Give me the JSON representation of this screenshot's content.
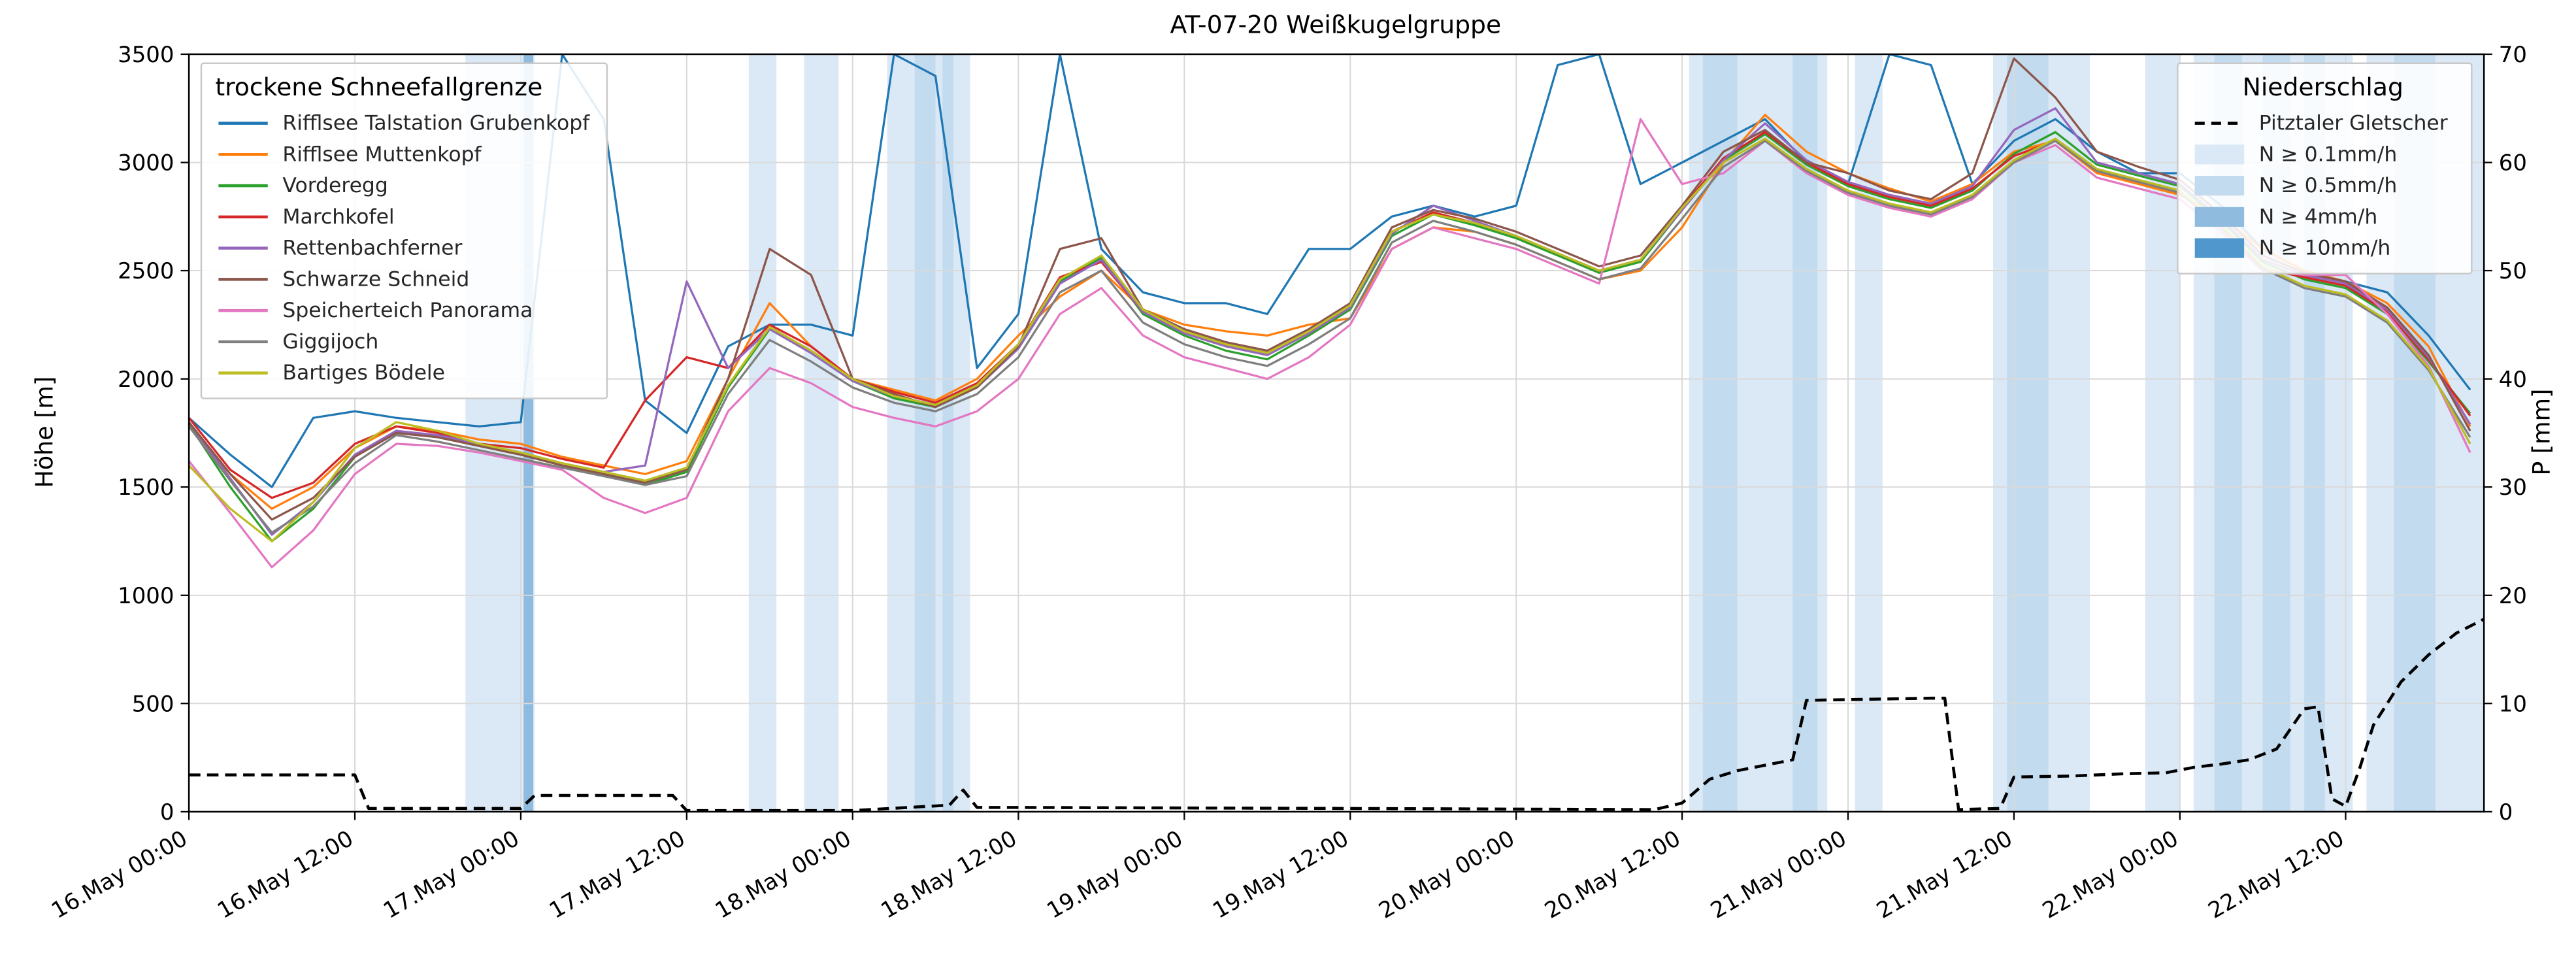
{
  "chart_data": {
    "type": "line",
    "title": "AT-07-20 Weißkugelgruppe",
    "ylabel_left": "Höhe [m]",
    "ylabel_right": "P [mm]",
    "legend_left_title": "trockene Schneefallgrenze",
    "legend_right_title": "Niederschlag",
    "x_domain": [
      0,
      166
    ],
    "x_hours": [
      0,
      3,
      6,
      9,
      12,
      15,
      18,
      21,
      24,
      27,
      30,
      33,
      36,
      39,
      42,
      45,
      48,
      51,
      54,
      57,
      60,
      63,
      66,
      69,
      72,
      75,
      78,
      81,
      84,
      87,
      90,
      93,
      96,
      99,
      102,
      105,
      108,
      111,
      114,
      117,
      120,
      123,
      126,
      129,
      132,
      135,
      138,
      141,
      144,
      147,
      150,
      153,
      156,
      159,
      162,
      165
    ],
    "x_tick_hours": [
      0,
      12,
      24,
      36,
      48,
      60,
      72,
      84,
      96,
      108,
      120,
      132,
      144,
      156
    ],
    "x_tick_labels": [
      "16.May 00:00",
      "16.May 12:00",
      "17.May 00:00",
      "17.May 12:00",
      "18.May 00:00",
      "18.May 12:00",
      "19.May 00:00",
      "19.May 12:00",
      "20.May 00:00",
      "20.May 12:00",
      "21.May 00:00",
      "21.May 12:00",
      "22.May 00:00",
      "22.May 12:00"
    ],
    "y_left": {
      "min": 0,
      "max": 3500,
      "ticks": [
        0,
        500,
        1000,
        1500,
        2000,
        2500,
        3000,
        3500
      ]
    },
    "y_right": {
      "min": 0,
      "max": 70,
      "ticks": [
        0,
        10,
        20,
        30,
        40,
        50,
        60,
        70
      ]
    },
    "grid_color": "#d9d9d9",
    "series": [
      {
        "name": "Rifflsee Talstation Grubenkopf",
        "color": "#1f77b4",
        "values": [
          1820,
          1650,
          1500,
          1820,
          1850,
          1820,
          1800,
          1780,
          1800,
          3500,
          3200,
          1900,
          1750,
          2150,
          2250,
          2250,
          2200,
          3500,
          3400,
          2050,
          2300,
          3500,
          2600,
          2400,
          2350,
          2350,
          2300,
          2600,
          2600,
          2750,
          2800,
          2750,
          2800,
          3450,
          3500,
          2900,
          3000,
          3100,
          3200,
          3000,
          2900,
          3500,
          3450,
          2900,
          3100,
          3200,
          3050,
          2950,
          2950,
          2800,
          2600,
          2500,
          2450,
          2400,
          2200,
          1950
        ]
      },
      {
        "name": "Rifflsee Muttenkopf",
        "color": "#ff7f0e",
        "values": [
          1780,
          1560,
          1400,
          1500,
          1680,
          1780,
          1760,
          1720,
          1700,
          1640,
          1600,
          1560,
          1620,
          2000,
          2350,
          2150,
          2000,
          1950,
          1900,
          2000,
          2200,
          2380,
          2500,
          2320,
          2250,
          2220,
          2200,
          2250,
          2280,
          2600,
          2700,
          2680,
          2620,
          2540,
          2460,
          2500,
          2700,
          3000,
          3220,
          3050,
          2950,
          2880,
          2820,
          2900,
          3050,
          3100,
          2950,
          2900,
          2850,
          2750,
          2600,
          2500,
          2450,
          2350,
          2150,
          1780
        ]
      },
      {
        "name": "Vorderegg",
        "color": "#2ca02c",
        "values": [
          1790,
          1500,
          1250,
          1400,
          1640,
          1760,
          1730,
          1690,
          1650,
          1600,
          1560,
          1510,
          1570,
          1960,
          2230,
          2120,
          1990,
          1910,
          1870,
          1960,
          2150,
          2450,
          2560,
          2300,
          2200,
          2130,
          2090,
          2200,
          2320,
          2660,
          2760,
          2710,
          2650,
          2570,
          2490,
          2540,
          2780,
          3010,
          3130,
          2990,
          2890,
          2830,
          2790,
          2870,
          3040,
          3140,
          2990,
          2940,
          2890,
          2730,
          2540,
          2460,
          2420,
          2300,
          2080,
          1840
        ]
      },
      {
        "name": "Marchkofel",
        "color": "#d62728",
        "values": [
          1820,
          1580,
          1450,
          1520,
          1700,
          1780,
          1750,
          1700,
          1680,
          1630,
          1590,
          1900,
          2100,
          2050,
          2250,
          2150,
          2000,
          1940,
          1890,
          1980,
          2160,
          2470,
          2540,
          2310,
          2220,
          2160,
          2120,
          2220,
          2340,
          2680,
          2770,
          2720,
          2660,
          2580,
          2500,
          2550,
          2790,
          3020,
          3140,
          3000,
          2900,
          2840,
          2800,
          2880,
          3030,
          3100,
          2960,
          2910,
          2860,
          2700,
          2510,
          2470,
          2430,
          2310,
          2090,
          1830
        ]
      },
      {
        "name": "Rettenbachferner",
        "color": "#9467bd",
        "values": [
          1800,
          1540,
          1280,
          1430,
          1650,
          1760,
          1740,
          1700,
          1660,
          1610,
          1570,
          1600,
          2450,
          2050,
          2230,
          2120,
          1990,
          1920,
          1880,
          1960,
          2140,
          2440,
          2550,
          2310,
          2210,
          2150,
          2110,
          2210,
          2330,
          2670,
          2800,
          2730,
          2660,
          2580,
          2500,
          2550,
          2780,
          3010,
          3180,
          3010,
          2910,
          2850,
          2810,
          2890,
          3150,
          3250,
          3000,
          2950,
          2900,
          2740,
          2550,
          2480,
          2440,
          2320,
          2100,
          1790
        ]
      },
      {
        "name": "Schwarze Schneid",
        "color": "#8c564b",
        "values": [
          1800,
          1560,
          1350,
          1450,
          1640,
          1750,
          1730,
          1690,
          1650,
          1600,
          1560,
          1520,
          1580,
          2000,
          2600,
          2480,
          2000,
          1930,
          1870,
          1960,
          2150,
          2600,
          2650,
          2320,
          2230,
          2170,
          2130,
          2230,
          2350,
          2700,
          2780,
          2740,
          2680,
          2600,
          2520,
          2570,
          2800,
          3050,
          3150,
          3000,
          2950,
          2870,
          2830,
          2950,
          3480,
          3300,
          3050,
          2980,
          2920,
          2760,
          2570,
          2490,
          2450,
          2330,
          2110,
          1760
        ]
      },
      {
        "name": "Speicherteich Panorama",
        "color": "#e377c2",
        "values": [
          1620,
          1380,
          1130,
          1300,
          1560,
          1700,
          1690,
          1660,
          1620,
          1580,
          1450,
          1380,
          1450,
          1850,
          2050,
          1980,
          1870,
          1820,
          1780,
          1850,
          2000,
          2300,
          2420,
          2200,
          2100,
          2050,
          2000,
          2100,
          2250,
          2600,
          2700,
          2650,
          2600,
          2520,
          2440,
          3200,
          2900,
          2950,
          3100,
          2950,
          2850,
          2790,
          2750,
          2830,
          3000,
          3080,
          2930,
          2880,
          2830,
          2680,
          2500,
          2480,
          2480,
          2300,
          2060,
          1660
        ]
      },
      {
        "name": "Giggijoch",
        "color": "#7f7f7f",
        "values": [
          1780,
          1530,
          1290,
          1410,
          1610,
          1740,
          1710,
          1670,
          1630,
          1590,
          1550,
          1510,
          1550,
          1930,
          2180,
          2080,
          1960,
          1890,
          1850,
          1930,
          2100,
          2400,
          2500,
          2260,
          2160,
          2100,
          2060,
          2160,
          2280,
          2630,
          2730,
          2680,
          2620,
          2540,
          2460,
          2510,
          2740,
          2980,
          3100,
          2960,
          2860,
          2800,
          2760,
          2840,
          3000,
          3100,
          2960,
          2910,
          2860,
          2700,
          2510,
          2420,
          2380,
          2260,
          2040,
          1730
        ]
      },
      {
        "name": "Bartiges Bödele",
        "color": "#bcbd22",
        "values": [
          1600,
          1400,
          1250,
          1430,
          1680,
          1800,
          1760,
          1700,
          1660,
          1610,
          1570,
          1530,
          1590,
          1970,
          2240,
          2130,
          2000,
          1920,
          1880,
          1970,
          2160,
          2460,
          2570,
          2320,
          2220,
          2160,
          2120,
          2220,
          2340,
          2680,
          2760,
          2720,
          2660,
          2580,
          2500,
          2550,
          2790,
          3000,
          3110,
          2970,
          2870,
          2810,
          2770,
          2850,
          3010,
          3110,
          2970,
          2920,
          2870,
          2710,
          2520,
          2430,
          2390,
          2270,
          2050,
          1700
        ]
      }
    ],
    "precip_line": {
      "name": "Pitztaler Gletscher",
      "color": "#000000",
      "points": [
        [
          0,
          3.4
        ],
        [
          12,
          3.4
        ],
        [
          13,
          0.3
        ],
        [
          24,
          0.3
        ],
        [
          25,
          1.5
        ],
        [
          35,
          1.5
        ],
        [
          36,
          0.1
        ],
        [
          48,
          0.1
        ],
        [
          52,
          0.4
        ],
        [
          55,
          0.6
        ],
        [
          56,
          2.0
        ],
        [
          57,
          0.4
        ],
        [
          60,
          0.4
        ],
        [
          72,
          0.35
        ],
        [
          84,
          0.3
        ],
        [
          96,
          0.25
        ],
        [
          106,
          0.2
        ],
        [
          108,
          0.8
        ],
        [
          110,
          3.0
        ],
        [
          112,
          3.8
        ],
        [
          114,
          4.3
        ],
        [
          116,
          4.8
        ],
        [
          117,
          10.3
        ],
        [
          126,
          10.5
        ],
        [
          127,
          10.5
        ],
        [
          128,
          0.2
        ],
        [
          131,
          0.3
        ],
        [
          132,
          3.2
        ],
        [
          136,
          3.3
        ],
        [
          140,
          3.5
        ],
        [
          143,
          3.6
        ],
        [
          145,
          4.1
        ],
        [
          147,
          4.4
        ],
        [
          149,
          4.8
        ],
        [
          151,
          5.8
        ],
        [
          153,
          9.5
        ],
        [
          154,
          9.7
        ],
        [
          155,
          1.2
        ],
        [
          156,
          0.5
        ],
        [
          157,
          4.0
        ],
        [
          158,
          8.0
        ],
        [
          160,
          12.0
        ],
        [
          162,
          14.5
        ],
        [
          164,
          16.5
        ],
        [
          166,
          17.8
        ]
      ]
    },
    "precip_levels": [
      {
        "label": "N ≥ 0.1mm/h",
        "color": "#dbe9f6"
      },
      {
        "label": "N ≥ 0.5mm/h",
        "color": "#c3dbee"
      },
      {
        "label": "N ≥ 4mm/h",
        "color": "#8fbcde"
      },
      {
        "label": "N ≥ 10mm/h",
        "color": "#4f97cd"
      }
    ],
    "precip_bands": [
      [
        20,
        25,
        0
      ],
      [
        24.2,
        24.9,
        2
      ],
      [
        40.5,
        42.5,
        0
      ],
      [
        44.5,
        47,
        0
      ],
      [
        50.5,
        56.5,
        0
      ],
      [
        52.5,
        54,
        1
      ],
      [
        54.5,
        55.3,
        1
      ],
      [
        108.5,
        118.5,
        0
      ],
      [
        109.5,
        112,
        1
      ],
      [
        116,
        117.8,
        1
      ],
      [
        120.5,
        122.5,
        0
      ],
      [
        130.5,
        137.5,
        0
      ],
      [
        131.5,
        134.5,
        1
      ],
      [
        141.5,
        144,
        0
      ],
      [
        145,
        156.5,
        0
      ],
      [
        146.5,
        148.5,
        1
      ],
      [
        150,
        152,
        1
      ],
      [
        153,
        154.5,
        1
      ],
      [
        157.5,
        166,
        0
      ],
      [
        159.5,
        162.5,
        1
      ]
    ]
  }
}
